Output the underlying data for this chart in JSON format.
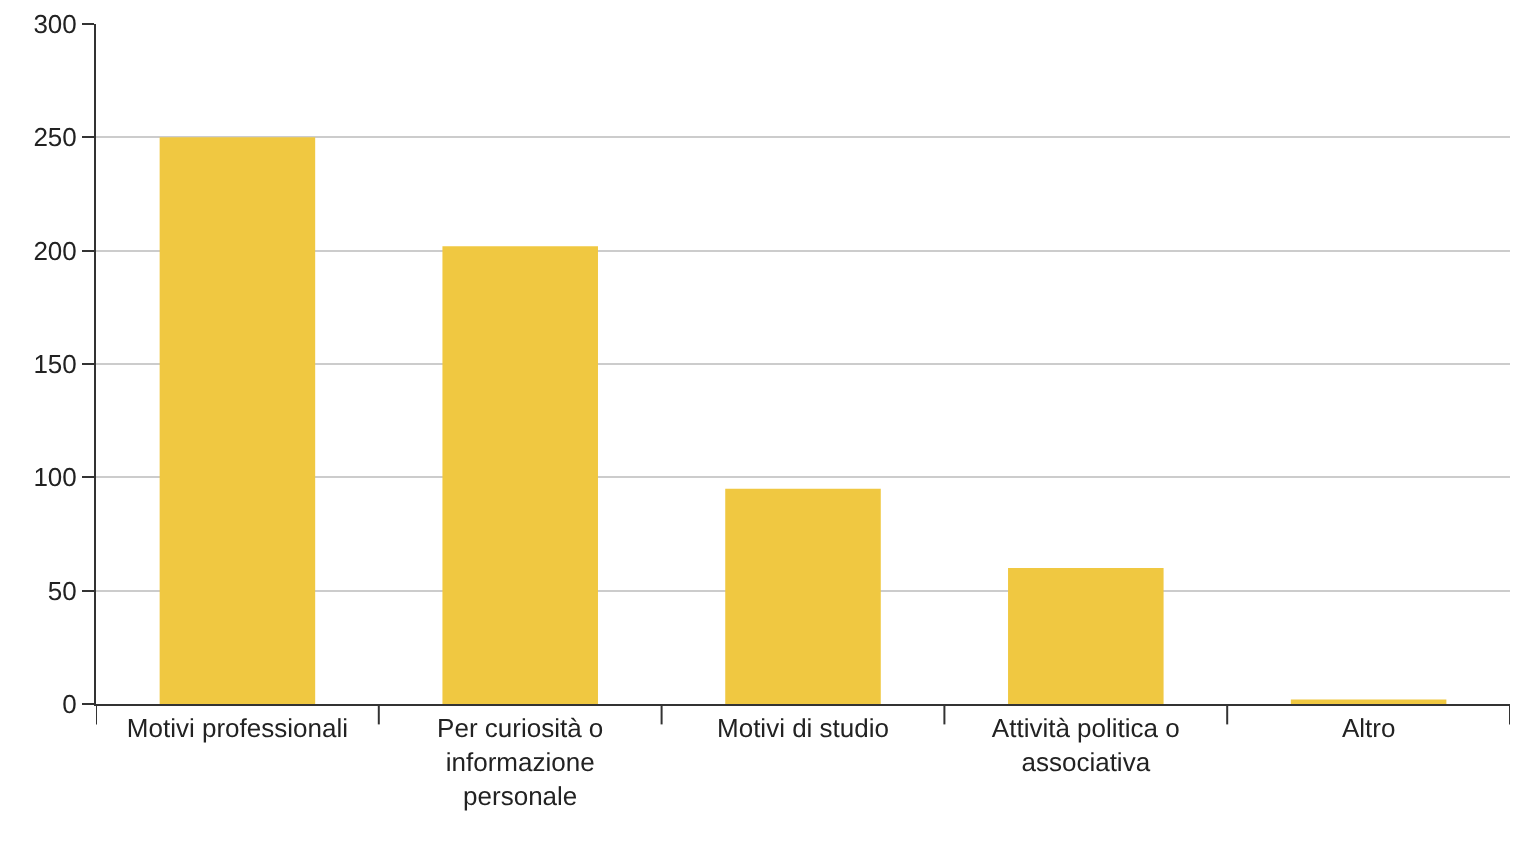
{
  "chart_data": {
    "type": "bar",
    "categories": [
      "Motivi professionali",
      "Per curiosità o informazione personale",
      "Motivi di studio",
      "Attività politica o associativa",
      "Altro"
    ],
    "values": [
      250,
      202,
      95,
      60,
      2
    ],
    "color": "#f0c841",
    "ylim": [
      0,
      300
    ],
    "yticks": [
      0,
      50,
      100,
      150,
      200,
      250,
      300
    ],
    "grid": "y"
  }
}
